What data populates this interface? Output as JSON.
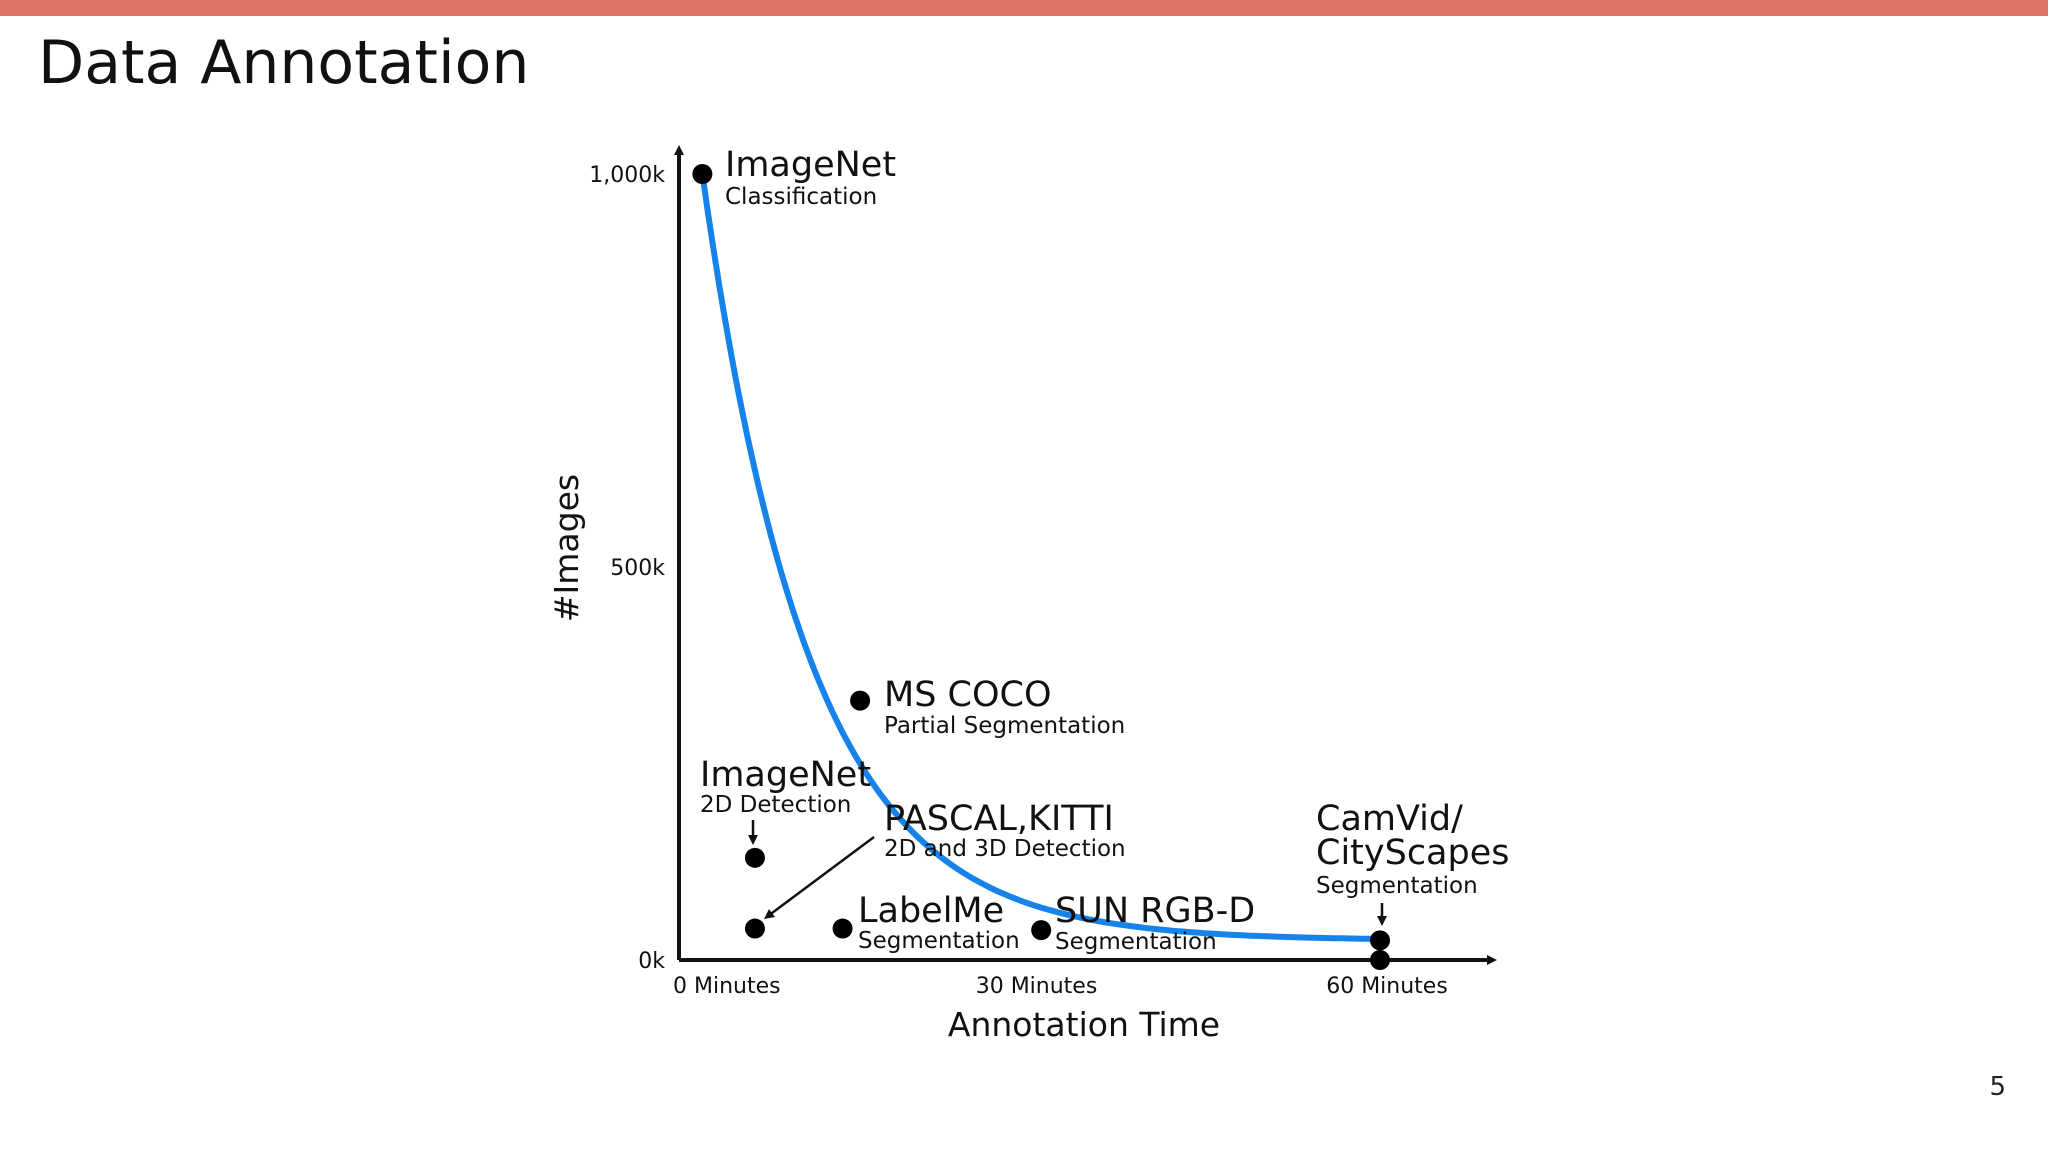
{
  "slide": {
    "title": "Data Annotation",
    "page_number": "5",
    "accent_color": "#e07464"
  },
  "chart_data": {
    "type": "scatter",
    "xlabel": "Annotation Time",
    "ylabel": "#Images",
    "xlim": [
      0,
      60
    ],
    "ylim": [
      0,
      1000
    ],
    "x_ticks": [
      {
        "value": 0,
        "label": "0 Minutes"
      },
      {
        "value": 30,
        "label": "30 Minutes"
      },
      {
        "value": 60,
        "label": "60 Minutes"
      }
    ],
    "y_ticks": [
      {
        "value": 0,
        "label": "0k"
      },
      {
        "value": 500,
        "label": "500k"
      },
      {
        "value": 1000,
        "label": "1,000k"
      }
    ],
    "curve_color": "#1583e9",
    "points": [
      {
        "id": "imagenet-cls",
        "x": 2,
        "y": 1000,
        "name": "ImageNet",
        "sub": "Classification"
      },
      {
        "id": "ms-coco",
        "x": 15.5,
        "y": 330,
        "name": "MS COCO",
        "sub": "Partial Segmentation"
      },
      {
        "id": "imagenet-det",
        "x": 6.5,
        "y": 130,
        "name": "ImageNet",
        "sub": "2D Detection"
      },
      {
        "id": "pascal-kitti",
        "x": 6.5,
        "y": 40,
        "name": "PASCAL,KITTI",
        "sub": "2D and 3D Detection"
      },
      {
        "id": "labelme",
        "x": 14,
        "y": 40,
        "name": "LabelMe",
        "sub": "Segmentation"
      },
      {
        "id": "sun-rgbd",
        "x": 31,
        "y": 38,
        "name": "SUN RGB-D",
        "sub": "Segmentation"
      },
      {
        "id": "camvid-cityscapes-a",
        "x": 60,
        "y": 25,
        "name": "CamVid/",
        "name2": "CityScapes",
        "sub": "Segmentation"
      },
      {
        "id": "camvid-cityscapes-b",
        "x": 60,
        "y": 0
      }
    ]
  }
}
